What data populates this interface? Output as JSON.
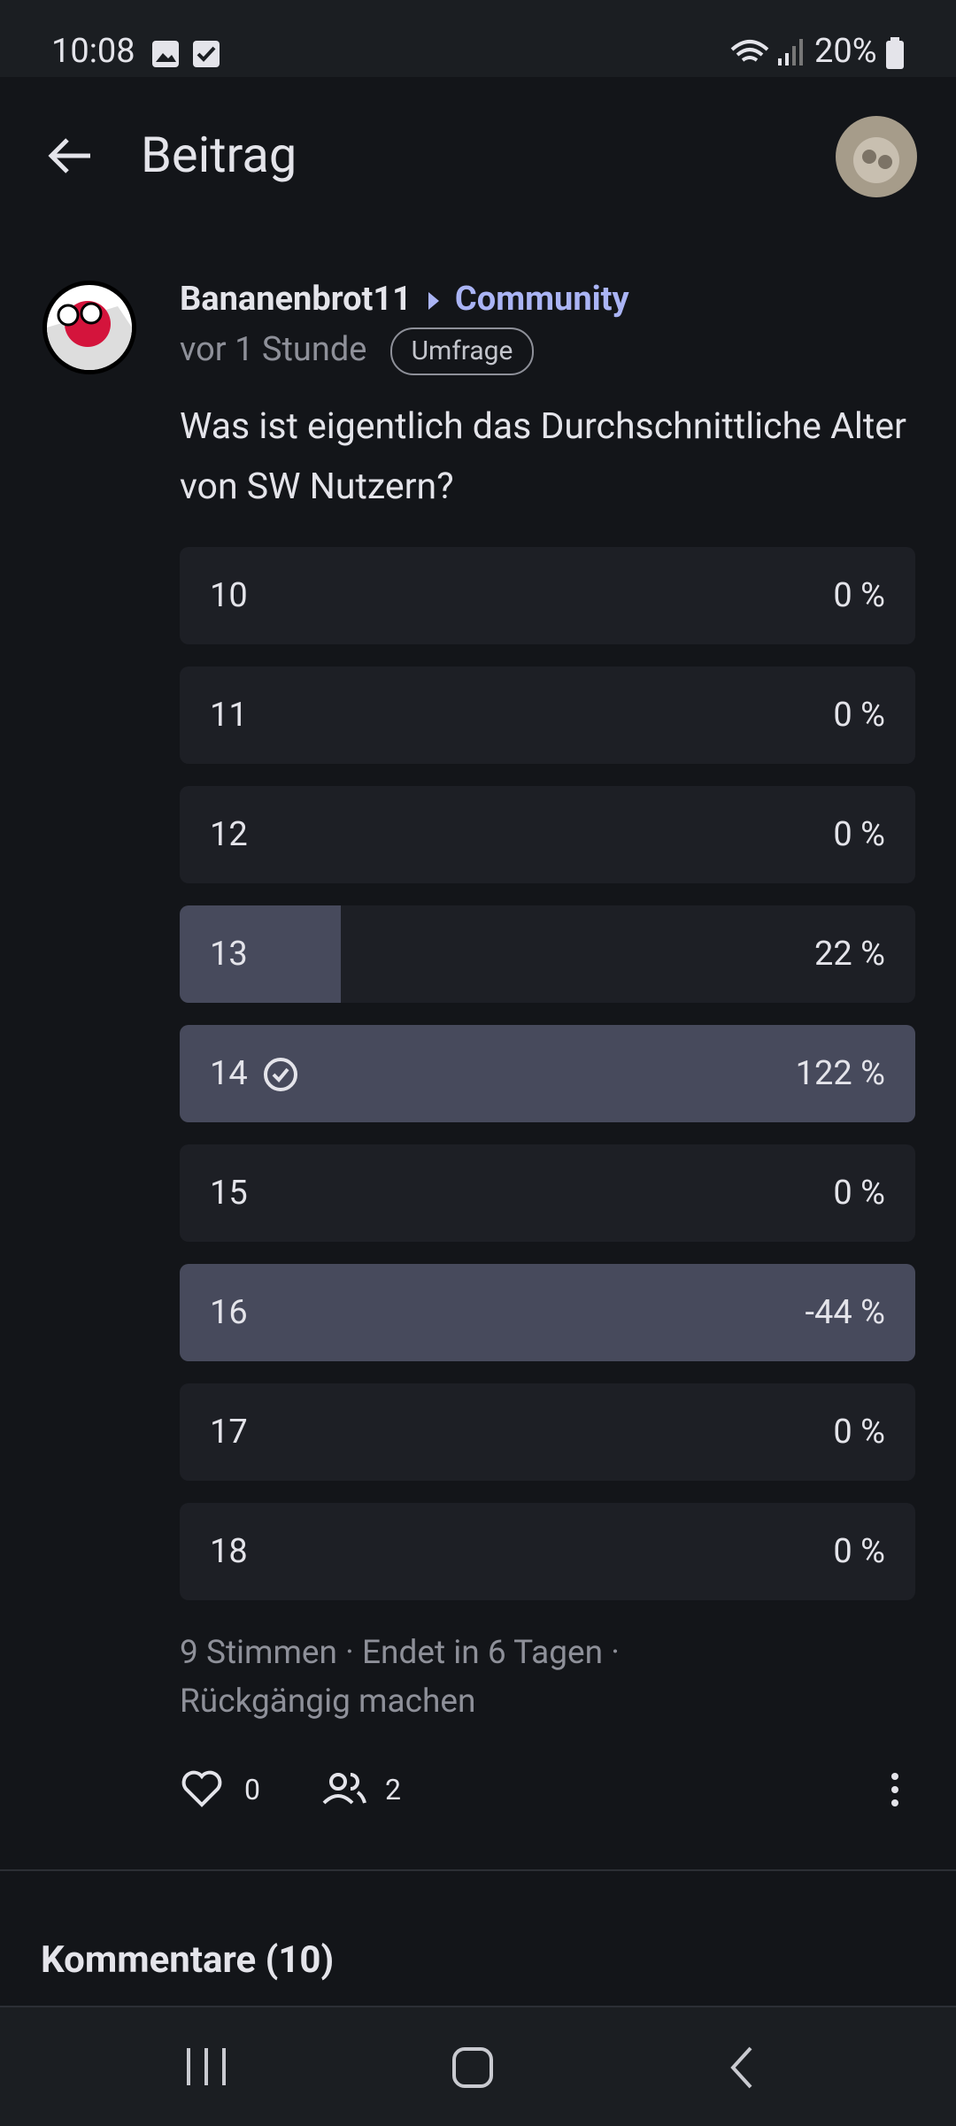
{
  "status_bar": {
    "time": "10:08",
    "battery": "20%"
  },
  "header": {
    "title": "Beitrag"
  },
  "post": {
    "author": "Bananenbrot11",
    "community": "Community",
    "time": "vor 1 Stunde",
    "tag": "Umfrage",
    "text": "Was ist eigentlich das Durchschnittliche Alter von SW Nutzern?",
    "poll": {
      "options": [
        {
          "label": "10",
          "percent": "0 %"
        },
        {
          "label": "11",
          "percent": "0 %"
        },
        {
          "label": "12",
          "percent": "0 %"
        },
        {
          "label": "13",
          "percent": "22 %"
        },
        {
          "label": "14",
          "percent": "122 %"
        },
        {
          "label": "15",
          "percent": "0 %"
        },
        {
          "label": "16",
          "percent": "-44 %"
        },
        {
          "label": "17",
          "percent": "0 %"
        },
        {
          "label": "18",
          "percent": "0 %"
        }
      ],
      "summary": "9 Stimmen · Endet in 6 Tagen ·",
      "undo": "Rückgängig machen"
    },
    "likes": "0",
    "participants": "2"
  },
  "comments": {
    "title": "Kommentare (10)"
  }
}
